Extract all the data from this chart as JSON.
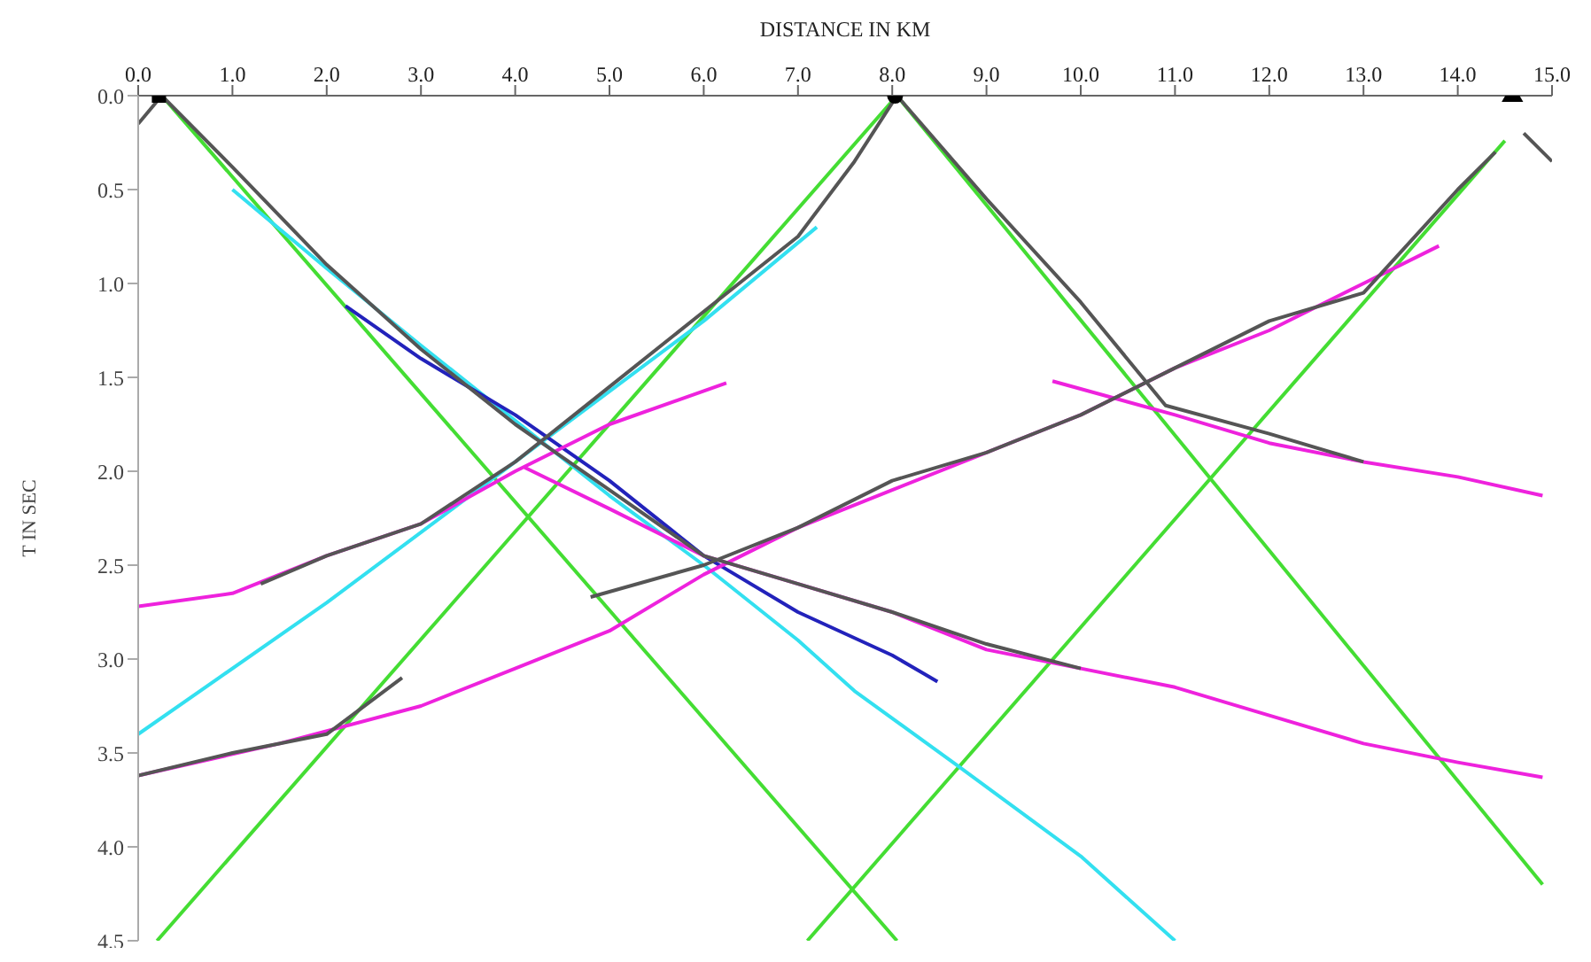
{
  "chart_data": {
    "type": "line",
    "xlabel": "DISTANCE IN KM",
    "ylabel": "T IN SEC",
    "xlim": [
      0,
      15
    ],
    "ylim": [
      4.5,
      0
    ],
    "xticks": [
      {
        "value": 0,
        "label": "0.0"
      },
      {
        "value": 1,
        "label": "1.0"
      },
      {
        "value": 2,
        "label": "2.0"
      },
      {
        "value": 3,
        "label": "3.0"
      },
      {
        "value": 4,
        "label": "4.0"
      },
      {
        "value": 5,
        "label": "5.0"
      },
      {
        "value": 6,
        "label": "6.0"
      },
      {
        "value": 7,
        "label": "7.0"
      },
      {
        "value": 8,
        "label": "8.0"
      },
      {
        "value": 9,
        "label": "9.0"
      },
      {
        "value": 10,
        "label": "10.0"
      },
      {
        "value": 11,
        "label": "11.0"
      },
      {
        "value": 12,
        "label": "12.0"
      },
      {
        "value": 13,
        "label": "13.0"
      },
      {
        "value": 14,
        "label": "14.0"
      },
      {
        "value": 15,
        "label": "15.0"
      }
    ],
    "yticks": [
      {
        "value": 0,
        "label": "0.0"
      },
      {
        "value": 0.5,
        "label": "0.5"
      },
      {
        "value": 1,
        "label": "1.0"
      },
      {
        "value": 1.5,
        "label": "1.5"
      },
      {
        "value": 2,
        "label": "2.0"
      },
      {
        "value": 2.5,
        "label": "2.5"
      },
      {
        "value": 3,
        "label": "3.0"
      },
      {
        "value": 3.5,
        "label": "3.5"
      },
      {
        "value": 4,
        "label": "4.0"
      },
      {
        "value": 4.5,
        "label": "4.5"
      }
    ],
    "marker": "none",
    "line_style": "solid",
    "series": [
      {
        "color": "#44dd33",
        "x": [
          0.25,
          8.05
        ],
        "values": [
          0,
          4.5
        ]
      },
      {
        "color": "#44dd33",
        "x": [
          0.2,
          8.05
        ],
        "values": [
          4.5,
          0
        ]
      },
      {
        "color": "#44dd33",
        "x": [
          8.05,
          14.9
        ],
        "values": [
          0,
          4.2
        ]
      },
      {
        "color": "#44dd33",
        "x": [
          7.1,
          14.5
        ],
        "values": [
          4.5,
          0.24
        ]
      },
      {
        "color": "#33e0f0",
        "x": [
          1,
          2,
          3,
          4,
          5,
          6,
          7,
          7.6,
          8.7,
          10,
          11
        ],
        "values": [
          0.5,
          0.92,
          1.33,
          1.73,
          2.13,
          2.5,
          2.9,
          3.17,
          3.57,
          4.05,
          4.5
        ]
      },
      {
        "color": "#33e0f0",
        "x": [
          0,
          2,
          4,
          6,
          7.2
        ],
        "values": [
          3.4,
          2.7,
          1.95,
          1.2,
          0.7
        ]
      },
      {
        "color": "#2222bb",
        "x": [
          2.2,
          3,
          4,
          5,
          6,
          7,
          8,
          8.48
        ],
        "values": [
          1.12,
          1.4,
          1.7,
          2.05,
          2.45,
          2.75,
          2.98,
          3.12
        ]
      },
      {
        "color": "#ee22dd",
        "x": [
          0,
          1,
          2,
          3,
          4,
          5,
          6.24
        ],
        "values": [
          2.72,
          2.65,
          2.45,
          2.28,
          2,
          1.75,
          1.53
        ]
      },
      {
        "color": "#ee22dd",
        "x": [
          0,
          1.5,
          3,
          4,
          5,
          6,
          7,
          8,
          9,
          10,
          11,
          12,
          13,
          13.8
        ],
        "values": [
          3.62,
          3.45,
          3.25,
          3.05,
          2.85,
          2.55,
          2.3,
          2.1,
          1.9,
          1.7,
          1.45,
          1.25,
          1,
          0.8
        ]
      },
      {
        "color": "#ee22dd",
        "x": [
          4.1,
          5,
          6,
          7,
          8,
          9,
          10,
          11,
          12,
          13,
          14,
          14.9
        ],
        "values": [
          1.98,
          2.2,
          2.45,
          2.6,
          2.75,
          2.95,
          3.05,
          3.15,
          3.3,
          3.45,
          3.55,
          3.63
        ]
      },
      {
        "color": "#ee22dd",
        "x": [
          9.7,
          11,
          12,
          13,
          14,
          14.9
        ],
        "values": [
          1.52,
          1.7,
          1.85,
          1.95,
          2.03,
          2.13
        ]
      },
      {
        "color": "#555555",
        "x": [
          0,
          0.25
        ],
        "values": [
          0.15,
          0
        ]
      },
      {
        "color": "#555555",
        "x": [
          0.25,
          1,
          2,
          3,
          4,
          5,
          6,
          7,
          8,
          9,
          10
        ],
        "values": [
          0,
          0.38,
          0.9,
          1.35,
          1.75,
          2.1,
          2.45,
          2.6,
          2.75,
          2.92,
          3.05
        ]
      },
      {
        "color": "#555555",
        "x": [
          1.3,
          2,
          3,
          4,
          5,
          6,
          7,
          7.6,
          8.05
        ],
        "values": [
          2.6,
          2.45,
          2.28,
          1.95,
          1.55,
          1.15,
          0.75,
          0.35,
          0
        ]
      },
      {
        "color": "#555555",
        "x": [
          0,
          1,
          2,
          2.8
        ],
        "values": [
          3.62,
          3.5,
          3.4,
          3.1
        ]
      },
      {
        "color": "#555555",
        "x": [
          8.05,
          9,
          10,
          10.9,
          12,
          13
        ],
        "values": [
          0,
          0.55,
          1.1,
          1.65,
          1.8,
          1.95
        ]
      },
      {
        "color": "#555555",
        "x": [
          4.8,
          6,
          7,
          8,
          9,
          10,
          11,
          12,
          13,
          14,
          14.4
        ],
        "values": [
          2.67,
          2.5,
          2.3,
          2.05,
          1.9,
          1.7,
          1.45,
          1.2,
          1.05,
          0.5,
          0.3
        ]
      },
      {
        "color": "#555555",
        "x": [
          14.7,
          15
        ],
        "values": [
          0.2,
          0.35
        ]
      },
      {
        "type": "scatter",
        "marker": "square",
        "color": "#000000",
        "x": [
          0.22
        ],
        "values": [
          0
        ]
      },
      {
        "type": "scatter",
        "marker": "circle",
        "color": "#000000",
        "x": [
          8.03
        ],
        "values": [
          0
        ]
      },
      {
        "type": "scatter",
        "marker": "triangle",
        "color": "#000000",
        "x": [
          14.58
        ],
        "values": [
          0
        ]
      }
    ]
  }
}
